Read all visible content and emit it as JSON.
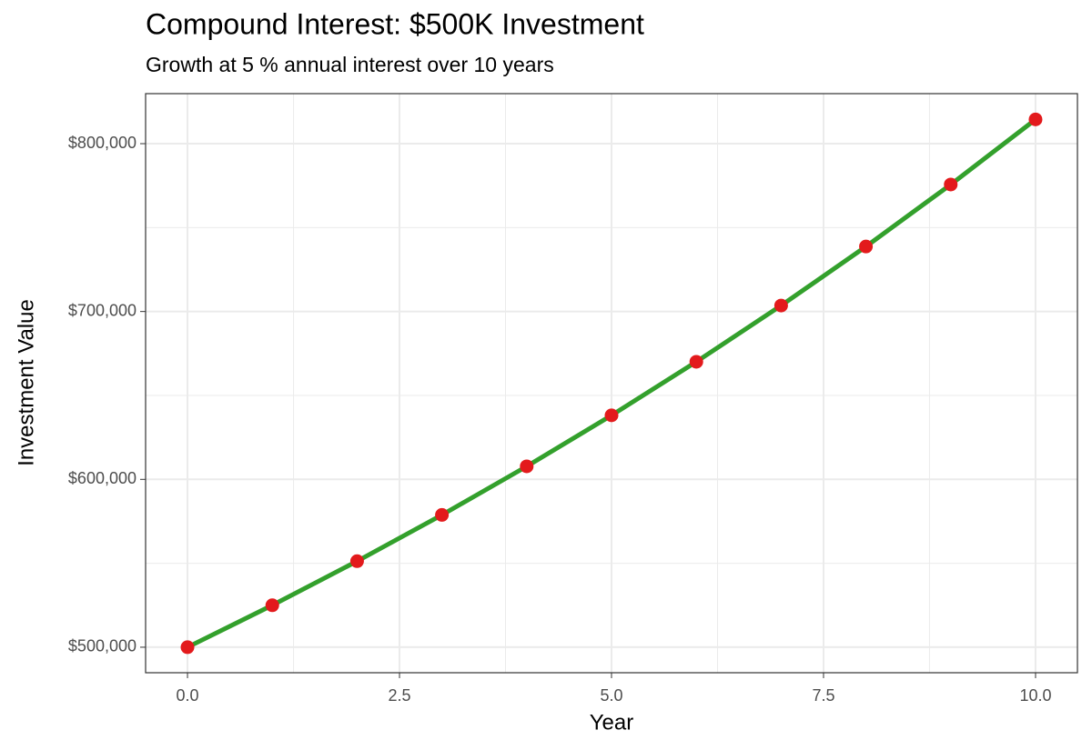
{
  "chart_data": {
    "type": "line",
    "title": "Compound Interest: $500K Investment",
    "subtitle": "Growth at 5 % annual interest over 10 years",
    "x_label": "Year",
    "y_label": "Investment Value",
    "x": [
      0,
      1,
      2,
      3,
      4,
      5,
      6,
      7,
      8,
      9,
      10
    ],
    "series": [
      {
        "name": "Investment Value",
        "line_color": "#33a02c",
        "point_color": "#e31a1c",
        "values": [
          500000,
          525000,
          551250,
          578813,
          607753,
          638141,
          670048,
          703550,
          738728,
          775664,
          814447
        ]
      }
    ],
    "xlim": [
      -0.494,
      10.494
    ],
    "ylim": [
      484800,
      829800
    ],
    "xticks": [
      {
        "value": 0,
        "label": "0.0"
      },
      2.5,
      {
        "value": 5,
        "label": "5.0"
      },
      7.5,
      {
        "value": 10,
        "label": "10.0"
      }
    ],
    "yticks": [
      {
        "value": 500000,
        "label": "$500,000"
      },
      {
        "value": 600000,
        "label": "$600,000"
      },
      {
        "value": 700000,
        "label": "$700,000"
      },
      {
        "value": 800000,
        "label": "$800,000"
      }
    ],
    "xminor": [
      1.25,
      3.75,
      6.25,
      8.75
    ],
    "yminor": [
      550000,
      650000,
      750000
    ],
    "grid": true
  }
}
